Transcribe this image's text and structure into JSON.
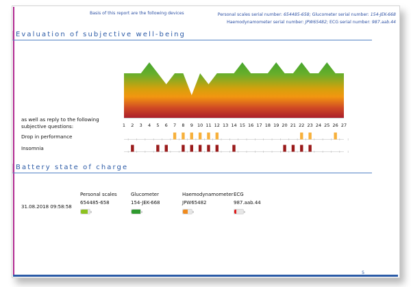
{
  "header": {
    "basis_text": "Basis of this report are the following devices",
    "devices_line1_prefix1": "Personal scales serial number: ",
    "devices_line1_val1": "654485-658;",
    "devices_line1_prefix2": " Glucometer serial number: ",
    "devices_line1_val2": "154-JEK-668",
    "devices_line2_prefix1": "Haemodynamometer serial number: ",
    "devices_line2_val1": "JPW65482;",
    "devices_line2_prefix2": " ECG serial number: ",
    "devices_line2_val2": "987.aab.44"
  },
  "sections": {
    "wellbeing_title": "Evaluation of subjective well-being",
    "battery_title": "Battery state of charge"
  },
  "questions": {
    "intro": "as well as reply to the following subjective questions:",
    "intro_line1": "as well as reply to the following",
    "intro_line2": "subjective questions:",
    "drop_label": "Drop in performance",
    "insomnia_label": "Insomnia"
  },
  "colors": {
    "top_green": "#4aa82e",
    "mid_orange": "#f29a10",
    "bottom_red": "#b11f26",
    "drop_bar": "#f7b03b",
    "insomnia_bar": "#9a1a1a",
    "title_blue": "#2b5aa6",
    "accent_magenta": "#b0288f"
  },
  "chart_data": [
    {
      "type": "area",
      "title": "Evaluation of subjective well-being",
      "xlabel": "",
      "ylabel": "",
      "x": [
        1,
        2,
        3,
        4,
        5,
        6,
        7,
        8,
        9,
        10,
        11,
        12,
        13,
        14,
        15,
        16,
        17,
        18,
        19,
        20,
        21,
        22,
        23,
        24,
        25,
        26,
        27
      ],
      "values": [
        3,
        3,
        3,
        4,
        3,
        2,
        3,
        3,
        1,
        3,
        2,
        3,
        3,
        3,
        4,
        3,
        3,
        3,
        4,
        3,
        3,
        4,
        3,
        3,
        4,
        3,
        3
      ],
      "ylim": [
        -3,
        4
      ],
      "fill": "vertical gradient green(top) - orange - red(bottom)",
      "grid": false
    },
    {
      "type": "bar",
      "title": "Drop in performance",
      "x": [
        1,
        2,
        3,
        4,
        5,
        6,
        7,
        8,
        9,
        10,
        11,
        12,
        13,
        14,
        15,
        16,
        17,
        18,
        19,
        20,
        21,
        22,
        23,
        24,
        25,
        26,
        27
      ],
      "values": [
        0,
        0,
        0,
        0,
        0,
        0,
        1,
        1,
        1,
        1,
        1,
        1,
        0,
        0,
        0,
        0,
        0,
        0,
        0,
        0,
        0,
        1,
        1,
        0,
        0,
        1,
        0
      ]
    },
    {
      "type": "bar",
      "title": "Insomnia",
      "x": [
        1,
        2,
        3,
        4,
        5,
        6,
        7,
        8,
        9,
        10,
        11,
        12,
        13,
        14,
        15,
        16,
        17,
        18,
        19,
        20,
        21,
        22,
        23,
        24,
        25,
        26,
        27
      ],
      "values": [
        0,
        1,
        0,
        0,
        1,
        1,
        0,
        1,
        1,
        1,
        1,
        1,
        0,
        1,
        0,
        0,
        0,
        0,
        0,
        1,
        1,
        1,
        1,
        0,
        0,
        0,
        0
      ]
    }
  ],
  "axis": {
    "ticks": [
      "1",
      "2",
      "3",
      "4",
      "5",
      "6",
      "7",
      "8",
      "9",
      "10",
      "11",
      "12",
      "13",
      "14",
      "15",
      "16",
      "17",
      "18",
      "19",
      "20",
      "21",
      "22",
      "23",
      "24",
      "25",
      "26",
      "27"
    ]
  },
  "battery": {
    "timestamp": "31.08.2018 09:58:58",
    "devices": [
      {
        "name": "Personal scales",
        "serial": "654485-658",
        "level": 75,
        "color": "#8dc21f"
      },
      {
        "name": "Glucometer",
        "serial": "154-JEK-668",
        "level": 100,
        "color": "#2e9a2e"
      },
      {
        "name": "Haemodynamometer",
        "serial": "JPW65482",
        "level": 50,
        "color": "#f08a1c"
      },
      {
        "name": "ECG",
        "serial": "987.aab.44",
        "level": 25,
        "color": "#e01b1b"
      }
    ]
  },
  "footer": {
    "page_number": "5"
  }
}
